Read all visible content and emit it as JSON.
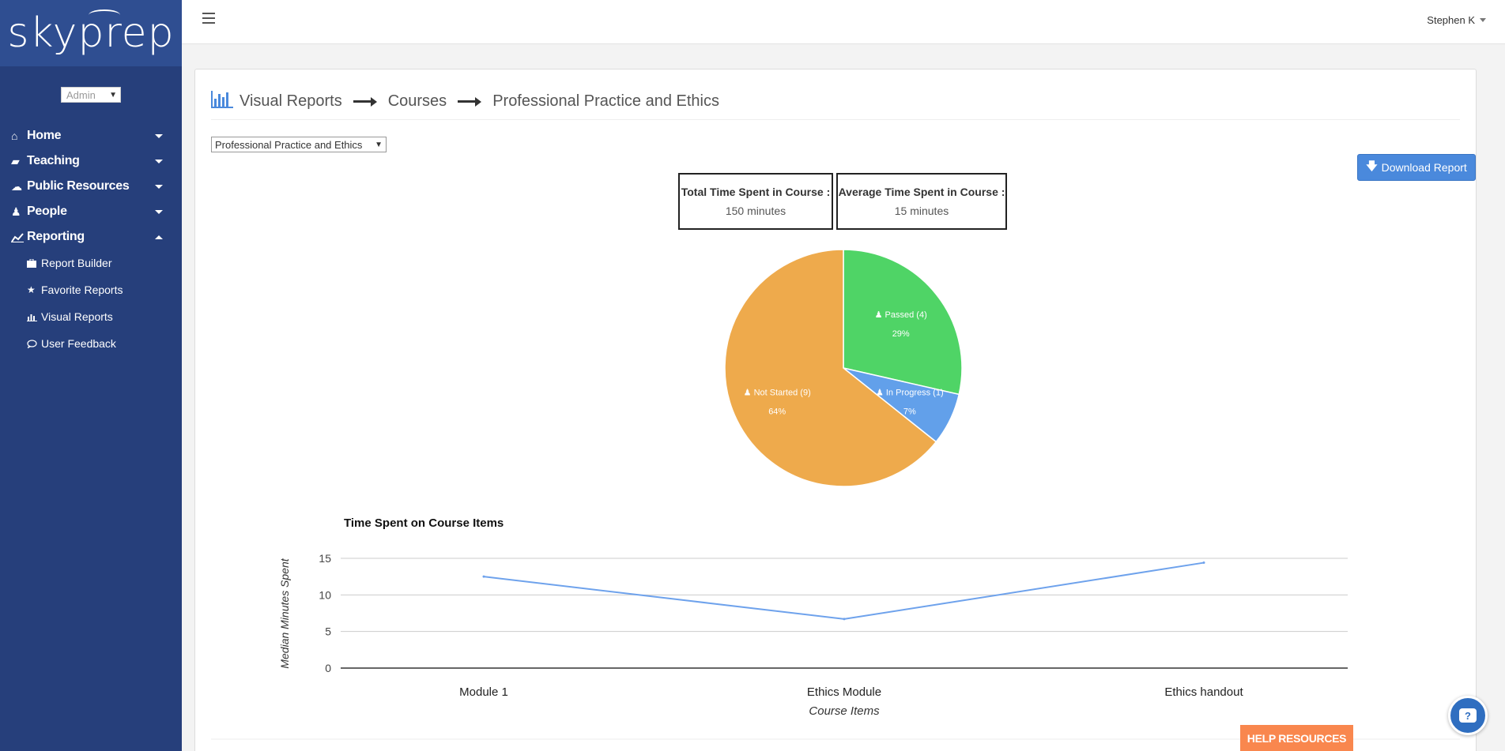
{
  "brand": {
    "logo_text": "skyprep"
  },
  "sidebar": {
    "role_select": "Admin",
    "items": [
      {
        "label": "Home",
        "icon": "home-icon",
        "expanded": false
      },
      {
        "label": "Teaching",
        "icon": "book-icon",
        "expanded": false
      },
      {
        "label": "Public Resources",
        "icon": "cloud-icon",
        "expanded": false
      },
      {
        "label": "People",
        "icon": "person-icon",
        "expanded": false
      },
      {
        "label": "Reporting",
        "icon": "line-chart-icon",
        "expanded": true
      }
    ],
    "subitems": [
      {
        "label": "Report Builder",
        "icon": "briefcase-icon"
      },
      {
        "label": "Favorite Reports",
        "icon": "star-icon"
      },
      {
        "label": "Visual Reports",
        "icon": "bar-chart-icon"
      },
      {
        "label": "User Feedback",
        "icon": "speech-bubble-icon"
      }
    ]
  },
  "topbar": {
    "user": "Stephen K"
  },
  "breadcrumb": {
    "root": "Visual Reports",
    "level1": "Courses",
    "level2": "Professional Practice and Ethics"
  },
  "course_select": {
    "value": "Professional Practice and Ethics"
  },
  "download_button": {
    "label": "Download Report"
  },
  "stats": {
    "total": {
      "label": "Total Time Spent in Course :",
      "value": "150 minutes"
    },
    "average": {
      "label": "Average Time Spent in Course :",
      "value": "15 minutes"
    }
  },
  "chart_data": [
    {
      "type": "pie",
      "slices": [
        {
          "name": "Passed (4)",
          "value": 4,
          "percent": "29%",
          "color": "#4fd466"
        },
        {
          "name": "In Progress (1)",
          "value": 1,
          "percent": "7%",
          "color": "#62a0ea"
        },
        {
          "name": "Not Started (9)",
          "value": 9,
          "percent": "64%",
          "color": "#eeaa4c"
        }
      ]
    },
    {
      "type": "line",
      "title": "Time Spent on Course Items",
      "xlabel": "Course Items",
      "ylabel": "Median Minutes Spent",
      "categories": [
        "Module 1",
        "Ethics Module",
        "Ethics handout"
      ],
      "series": [
        {
          "values": [
            12.5,
            6.7,
            14.4
          ],
          "color": "#6ea2ec"
        }
      ],
      "ylim": [
        0,
        15
      ],
      "yticks": [
        0,
        5,
        10,
        15
      ],
      "grid": true
    }
  ],
  "help": {
    "label": "HELP RESOURCES"
  }
}
